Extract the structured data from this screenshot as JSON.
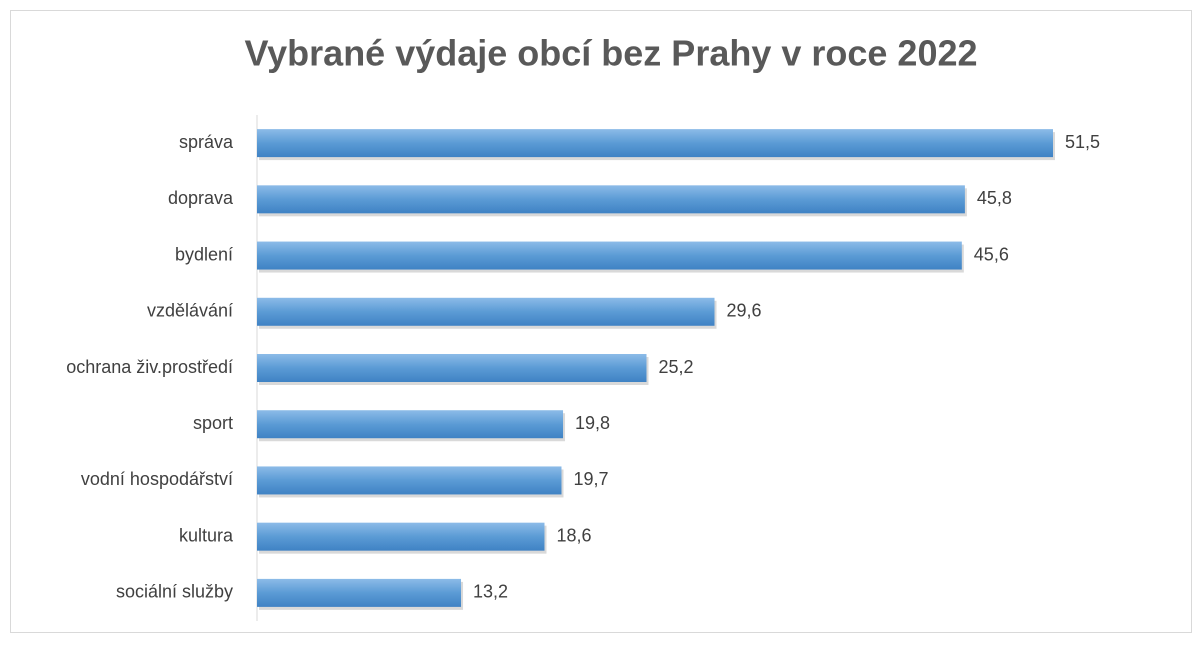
{
  "chart_data": {
    "type": "bar",
    "orientation": "horizontal",
    "title": "Vybrané výdaje obcí bez Prahy v roce 2022",
    "categories": [
      "správa",
      "doprava",
      "bydlení",
      "vzdělávání",
      "ochrana živ.prostředí",
      "sport",
      "vodní hospodářství",
      "kultura",
      "sociální služby"
    ],
    "values": [
      51.5,
      45.8,
      45.6,
      29.6,
      25.2,
      19.8,
      19.7,
      18.6,
      13.2
    ],
    "value_labels": [
      "51,5",
      "45,8",
      "45,6",
      "29,6",
      "25,2",
      "19,8",
      "19,7",
      "18,6",
      "13,2"
    ],
    "color": "#5b9bd5",
    "grid": false
  }
}
